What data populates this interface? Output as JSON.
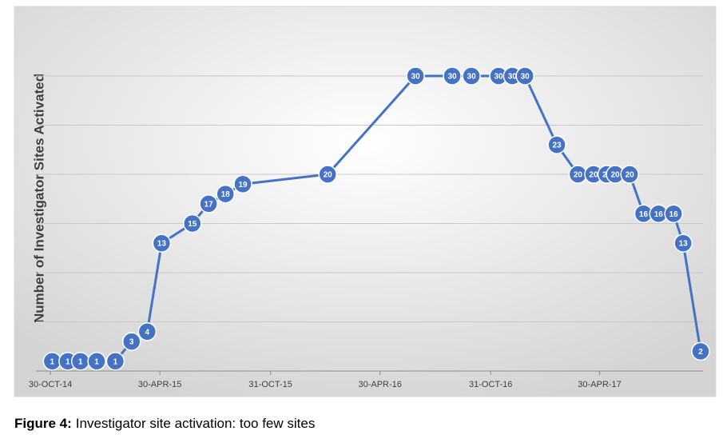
{
  "chart_data": {
    "type": "line",
    "y_label": "Number of Investigator Sites Activated",
    "caption_label": "Figure 4:",
    "caption": "Investigator site activation: too few sites",
    "x": [
      "2014-11-02",
      "2014-11-28",
      "2014-12-19",
      "2015-01-15",
      "2015-02-15",
      "2015-03-14",
      "2015-04-09",
      "2015-05-03",
      "2015-06-23",
      "2015-07-20",
      "2015-08-17",
      "2015-09-15",
      "2016-02-03",
      "2016-06-28",
      "2016-08-28",
      "2016-09-29",
      "2016-11-13",
      "2016-12-06",
      "2016-12-27",
      "2017-02-18",
      "2017-03-25",
      "2017-04-20",
      "2017-05-12",
      "2017-05-26",
      "2017-06-19",
      "2017-07-12",
      "2017-08-06",
      "2017-08-31",
      "2017-09-16",
      "2017-10-15"
    ],
    "values": [
      1,
      1,
      1,
      1,
      1,
      3,
      4,
      13,
      15,
      17,
      18,
      19,
      20,
      30,
      30,
      30,
      30,
      30,
      30,
      23,
      20,
      20,
      20,
      20,
      20,
      16,
      16,
      16,
      13,
      2
    ],
    "color": "#4472c4",
    "xlim": [
      "2014-10-06",
      "2017-10-19"
    ],
    "xticks": [
      {
        "value": "2014-10-30",
        "label": "30-OCT-14"
      },
      {
        "value": "2015-04-30",
        "label": "30-APR-15"
      },
      {
        "value": "2015-10-31",
        "label": "31-OCT-15"
      },
      {
        "value": "2016-04-30",
        "label": "30-APR-16"
      },
      {
        "value": "2016-10-31",
        "label": "31-OCT-16"
      },
      {
        "value": "2017-04-30",
        "label": "30-APR-17"
      }
    ],
    "ylim": [
      0,
      35
    ],
    "yticks": [
      0,
      5,
      10,
      15,
      20,
      25,
      30
    ],
    "grid": true
  }
}
